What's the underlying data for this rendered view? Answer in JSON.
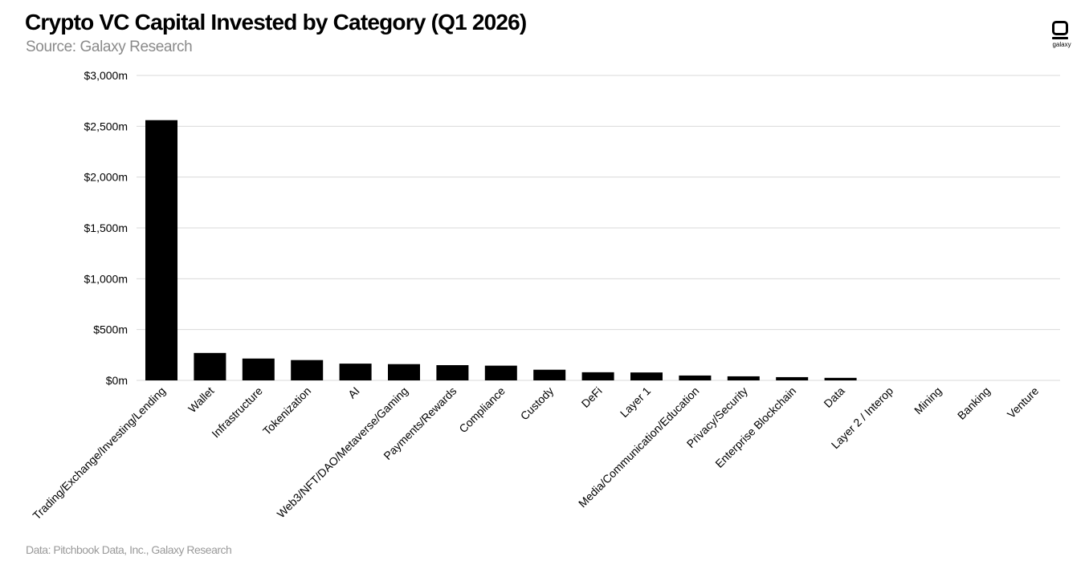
{
  "header": {
    "title": "Crypto VC Capital Invested by Category (Q1 2026)",
    "subtitle": "Source: Galaxy Research"
  },
  "footer": {
    "note": "Data: Pitchbook Data, Inc., Galaxy Research"
  },
  "logo": {
    "text": "galaxy",
    "icon": "galaxy-logo-icon"
  },
  "colors": {
    "bar": "#000000",
    "grid": "#d9d9d9",
    "subtitle": "#8a8a8a",
    "footer": "#9a9a9a"
  },
  "chart_data": {
    "type": "bar",
    "title": "Crypto VC Capital Invested by Category (Q1 2026)",
    "xlabel": "",
    "ylabel": "",
    "ylim": [
      0,
      3000
    ],
    "yticks": [
      0,
      500,
      1000,
      1500,
      2000,
      2500,
      3000
    ],
    "ytick_labels": [
      "$0m",
      "$500m",
      "$1,000m",
      "$1,500m",
      "$2,000m",
      "$2,500m",
      "$3,000m"
    ],
    "grid": true,
    "legend": "none",
    "categories": [
      "Trading/Exchange/Investing/Lending",
      "Wallet",
      "Infrastructure",
      "Tokenization",
      "AI",
      "Web3/NFT/DAO/Metaverse/Gaming",
      "Payments/Rewards",
      "Compliance",
      "Custody",
      "DeFi",
      "Layer 1",
      "Media/Communication/Education",
      "Privacy/Security",
      "Enterprise Blockchain",
      "Data",
      "Layer 2 / Interop",
      "Mining",
      "Banking",
      "Venture"
    ],
    "values": [
      2560,
      270,
      215,
      200,
      165,
      160,
      150,
      145,
      105,
      80,
      78,
      48,
      40,
      32,
      25,
      0,
      0,
      0,
      0
    ]
  }
}
